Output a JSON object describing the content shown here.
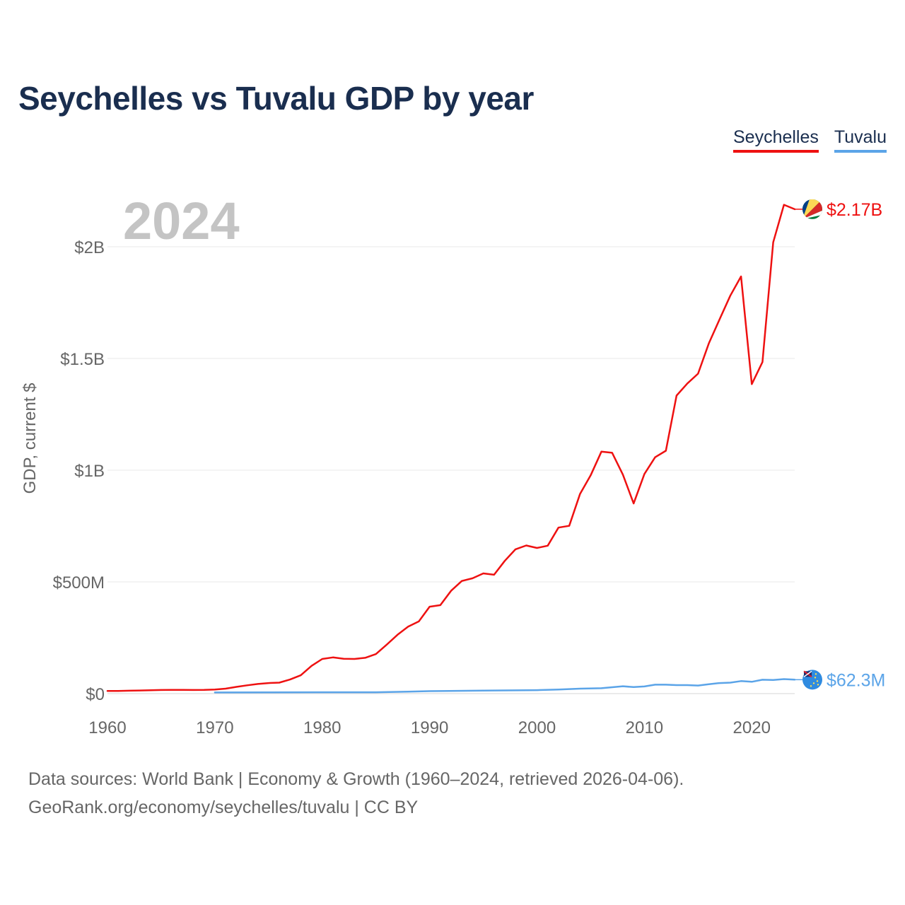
{
  "title": "Seychelles vs Tuvalu GDP by year",
  "legend": [
    {
      "label": "Seychelles",
      "color": "#ee1111"
    },
    {
      "label": "Tuvalu",
      "color": "#5ba4e8"
    }
  ],
  "source": {
    "line1": "Data sources: World Bank | Economy & Growth (1960–2024, retrieved 2026-04-06).",
    "line2": "GeoRank.org/economy/seychelles/tuvalu | CC BY"
  },
  "chart_data": {
    "type": "line",
    "title": "Seychelles vs Tuvalu GDP by year",
    "xlabel": "",
    "ylabel": "GDP, current $",
    "year_label": "2024",
    "xlim": [
      1960,
      2024
    ],
    "ylim": [
      0,
      2200000000
    ],
    "x_ticks": [
      {
        "value": 1960,
        "label": "1960"
      },
      {
        "value": 1970,
        "label": "1970"
      },
      {
        "value": 1980,
        "label": "1980"
      },
      {
        "value": 1990,
        "label": "1990"
      },
      {
        "value": 2000,
        "label": "2000"
      },
      {
        "value": 2010,
        "label": "2010"
      },
      {
        "value": 2020,
        "label": "2020"
      }
    ],
    "y_ticks": [
      {
        "value": 0,
        "label": "$0"
      },
      {
        "value": 500000000,
        "label": "$500M"
      },
      {
        "value": 1000000000,
        "label": "$1B"
      },
      {
        "value": 1500000000,
        "label": "$1.5B"
      },
      {
        "value": 2000000000,
        "label": "$2B"
      }
    ],
    "grid": true,
    "legend_position": "top-right",
    "series": [
      {
        "name": "Seychelles",
        "color": "#ee1111",
        "end_label": "$2.17B",
        "x": [
          1960,
          1961,
          1962,
          1963,
          1964,
          1965,
          1966,
          1967,
          1968,
          1969,
          1970,
          1971,
          1972,
          1973,
          1974,
          1975,
          1976,
          1977,
          1978,
          1979,
          1980,
          1981,
          1982,
          1983,
          1984,
          1985,
          1986,
          1987,
          1988,
          1989,
          1990,
          1991,
          1992,
          1993,
          1994,
          1995,
          1996,
          1997,
          1998,
          1999,
          2000,
          2001,
          2002,
          2003,
          2004,
          2005,
          2006,
          2007,
          2008,
          2009,
          2010,
          2011,
          2012,
          2013,
          2014,
          2015,
          2016,
          2017,
          2018,
          2019,
          2020,
          2021,
          2022,
          2023,
          2024
        ],
        "values": [
          12000000,
          12000000,
          13000000,
          14000000,
          15000000,
          16000000,
          16500000,
          16500000,
          16000000,
          16500000,
          18000000,
          22000000,
          30000000,
          37000000,
          43000000,
          47000000,
          49000000,
          63000000,
          82000000,
          124000000,
          155000000,
          162000000,
          156000000,
          155000000,
          160000000,
          177000000,
          219000000,
          263000000,
          300000000,
          323000000,
          389000000,
          396000000,
          460000000,
          504000000,
          516000000,
          538000000,
          532000000,
          594000000,
          646000000,
          663000000,
          652000000,
          662000000,
          743000000,
          751000000,
          893000000,
          977000000,
          1083000000,
          1078000000,
          980000000,
          851000000,
          983000000,
          1058000000,
          1087000000,
          1334000000,
          1388000000,
          1432000000,
          1567000000,
          1675000000,
          1781000000,
          1867000000,
          1385000000,
          1484000000,
          2020000000,
          2188000000,
          2168000000
        ]
      },
      {
        "name": "Tuvalu",
        "color": "#5ba4e8",
        "end_label": "$62.3M",
        "x": [
          1970,
          1975,
          1980,
          1985,
          1988,
          1990,
          1995,
          2000,
          2002,
          2004,
          2006,
          2008,
          2009,
          2010,
          2011,
          2012,
          2013,
          2014,
          2015,
          2016,
          2017,
          2018,
          2019,
          2020,
          2021,
          2022,
          2023,
          2024
        ],
        "values": [
          5000000,
          5500000,
          6000000,
          6000000,
          8500000,
          11000000,
          13500000,
          15500000,
          18000000,
          22000000,
          24000000,
          33000000,
          29000000,
          32000000,
          40000000,
          40000000,
          38000000,
          38000000,
          36000000,
          42000000,
          47000000,
          49000000,
          56000000,
          53000000,
          62000000,
          61000000,
          65000000,
          62300000
        ]
      }
    ]
  }
}
